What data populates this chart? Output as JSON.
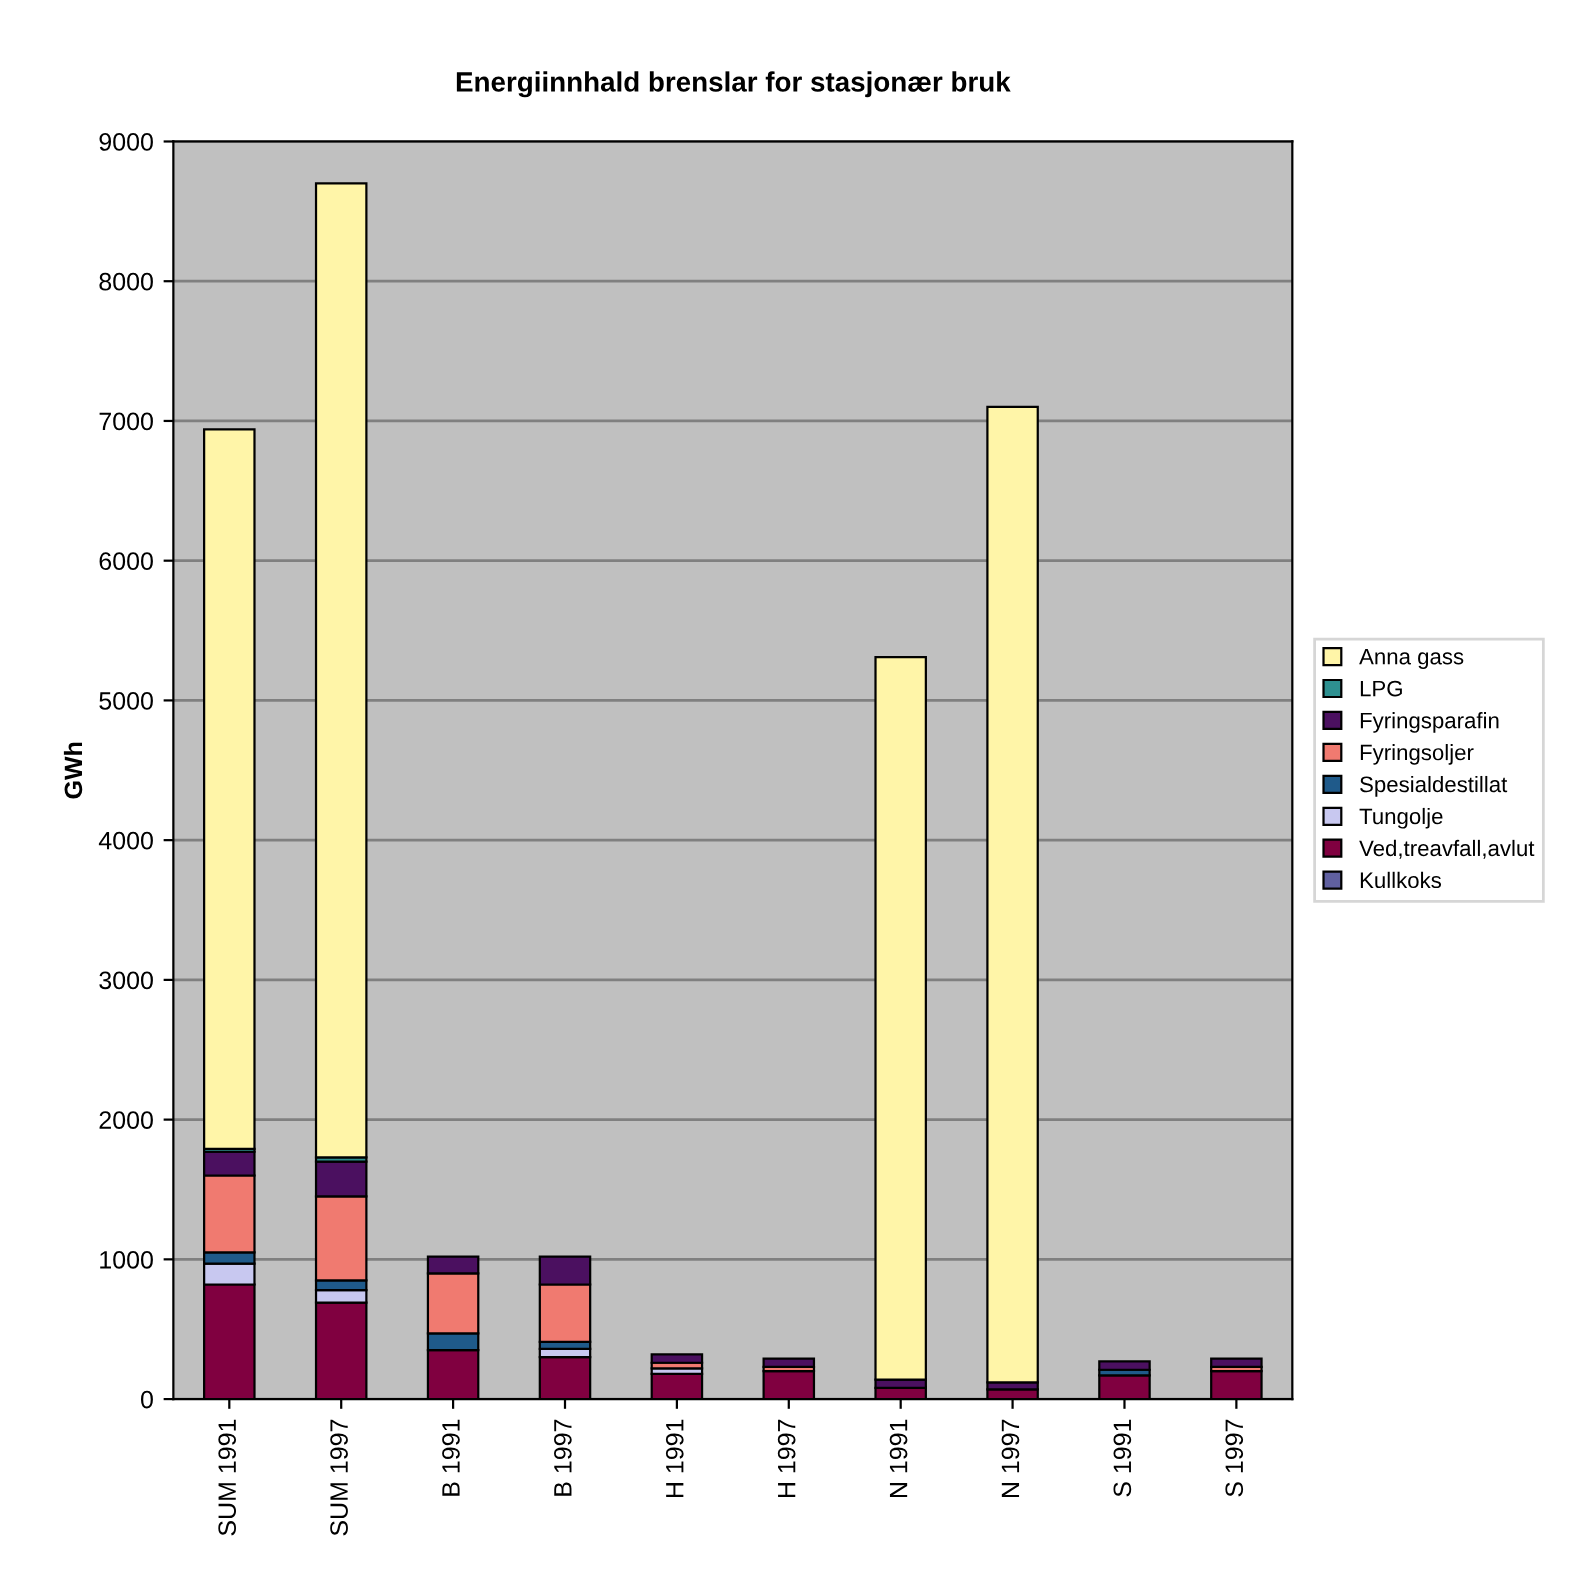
{
  "chart_data": {
    "type": "bar",
    "stacked": true,
    "title": "Energiinnhald brenslar for stasjonær bruk",
    "ylabel": "GWh",
    "categories": [
      "SUM 1991",
      "SUM 1997",
      "B 1991",
      "B 1997",
      "H 1991",
      "H 1997",
      "N 1991",
      "N 1997",
      "S 1991",
      "S 1997"
    ],
    "series": [
      {
        "name": "Kullkoks",
        "color": "#6060a0",
        "values": [
          null,
          null,
          null,
          null,
          null,
          null,
          null,
          null,
          null,
          null
        ]
      },
      {
        "name": "Ved,treavfall,avlut",
        "color": "#800040",
        "values": [
          820,
          690,
          350,
          300,
          180,
          200,
          80,
          70,
          170,
          200
        ]
      },
      {
        "name": "Tungolje",
        "color": "#c8c8f0",
        "values": [
          150,
          90,
          null,
          60,
          40,
          null,
          null,
          null,
          null,
          null
        ]
      },
      {
        "name": "Spesialdestillat",
        "color": "#1f5a8a",
        "values": [
          80,
          70,
          120,
          50,
          null,
          null,
          null,
          null,
          40,
          null
        ]
      },
      {
        "name": "Fyringsoljer",
        "color": "#f07a70",
        "values": [
          550,
          600,
          430,
          410,
          40,
          30,
          null,
          null,
          null,
          30
        ]
      },
      {
        "name": "Fyringsparafin",
        "color": "#4b1060",
        "values": [
          170,
          250,
          120,
          200,
          60,
          60,
          60,
          50,
          60,
          60
        ]
      },
      {
        "name": "LPG",
        "color": "#2e9090",
        "values": [
          20,
          30,
          null,
          null,
          null,
          null,
          null,
          null,
          null,
          null
        ]
      },
      {
        "name": "Anna gass",
        "color": "#fff5a8",
        "values": [
          5150,
          6970,
          null,
          null,
          null,
          null,
          5170,
          6980,
          null,
          null
        ]
      }
    ],
    "ylim": [
      0,
      9000
    ],
    "yticks": [
      0,
      1000,
      2000,
      3000,
      4000,
      5000,
      6000,
      7000,
      8000,
      9000
    ],
    "grid": "y",
    "legend": "right"
  }
}
